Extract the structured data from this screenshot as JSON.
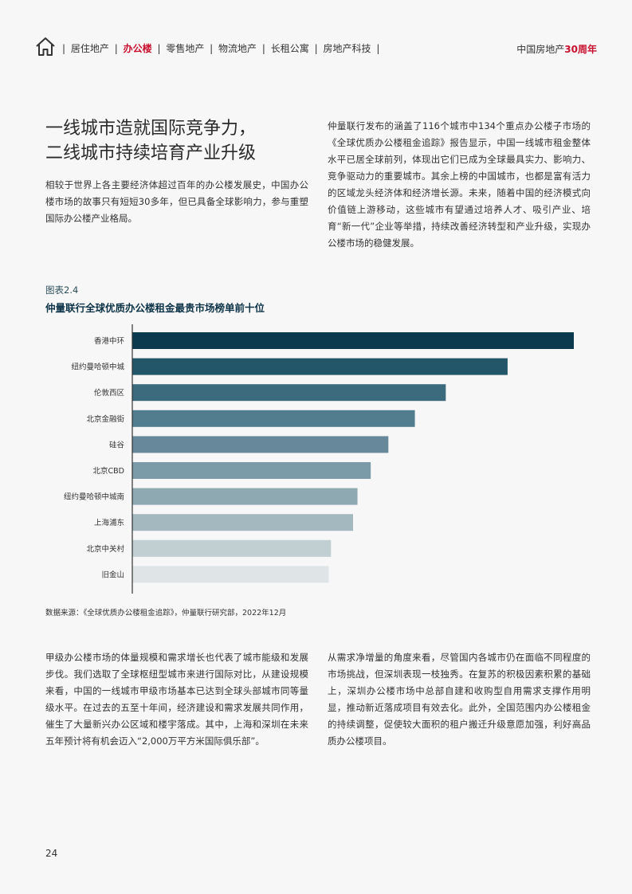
{
  "header": {
    "home_icon": "house-icon",
    "nav_items": [
      {
        "label": "居住地产"
      },
      {
        "label": "办公楼",
        "active": true
      },
      {
        "label": "零售地产"
      },
      {
        "label": "物流地产"
      },
      {
        "label": "长租公寓"
      },
      {
        "label": "房地产科技"
      }
    ],
    "brand_prefix": "中国房地产",
    "brand_accent": "30周年",
    "accent_color": "#c8102e"
  },
  "headline": {
    "line1": "一线城市造就国际竞争力，",
    "line2": "二线城市持续培育产业升级"
  },
  "intro": "相较于世界上各主要经济体超过百年的办公楼发展史，中国办公楼市场的故事只有短短30多年，但已具备全球影响力，参与重塑国际办公楼产业格局。",
  "right_top": "仲量联行发布的涵盖了116个城市中134个重点办公楼子市场的《全球优质办公楼租金追踪》报告显示，中国一线城市租金整体水平已居全球前列，体现出它们已成为全球最具实力、影响力、竞争驱动力的重要城市。其余上榜的中国城市，也都是富有活力的区域龙头经济体和经济增长源。未来，随着中国的经济模式向价值链上游移动，这些城市有望通过培养人才、吸引产业、培育“新一代”企业等举措，持续改善经济转型和产业升级，实现办公楼市场的稳健发展。",
  "figure": {
    "label": "图表2.4",
    "title": "仲量联行全球优质办公楼租金最贵市场榜单前十位",
    "source": "数据来源：《全球优质办公楼租金追踪》，仲量联行研究部，2022年12月"
  },
  "chart_data": {
    "type": "bar",
    "orientation": "horizontal",
    "categories": [
      "香港中环",
      "纽约曼哈顿中城",
      "伦敦西区",
      "北京金融街",
      "硅谷",
      "北京CBD",
      "纽约曼哈顿中城南",
      "上海浦东",
      "北京中关村",
      "旧金山"
    ],
    "values": [
      100,
      85,
      71,
      64,
      58,
      54,
      51,
      50,
      45,
      44.5
    ],
    "colors": [
      "#0b3a4f",
      "#24566a",
      "#3c6b7d",
      "#527d8e",
      "#66889a",
      "#7b9ba8",
      "#8fa9b3",
      "#a4b8bf",
      "#c1cfd3",
      "#dfe5e7"
    ],
    "xlim": [
      0,
      100
    ],
    "grid": false,
    "legend": "none"
  },
  "bottom_left": "甲级办公楼市场的体量规模和需求增长也代表了城市能级和发展步伐。我们选取了全球枢纽型城市来进行国际对比，从建设规模来看，中国的一线城市甲级市场基本已达到全球头部城市同等量级水平。在过去的五至十年间，经济建设和需求发展共同作用，催生了大量新兴办公区域和楼宇落成。其中，上海和深圳在未来五年预计将有机会迈入“2,000万平方米国际俱乐部”。",
  "bottom_right": "从需求净增量的角度来看，尽管国内各城市仍在面临不同程度的市场挑战，但深圳表现一枝独秀。在复苏的积极因素积累的基础上，深圳办公楼市场中总部自建和收购型自用需求支撑作用明显，推动新近落成项目有效去化。此外，全国范围内办公楼租金的持续调整，促使较大面积的租户搬迁升级意愿加强，利好高品质办公楼项目。",
  "page_number": "24"
}
